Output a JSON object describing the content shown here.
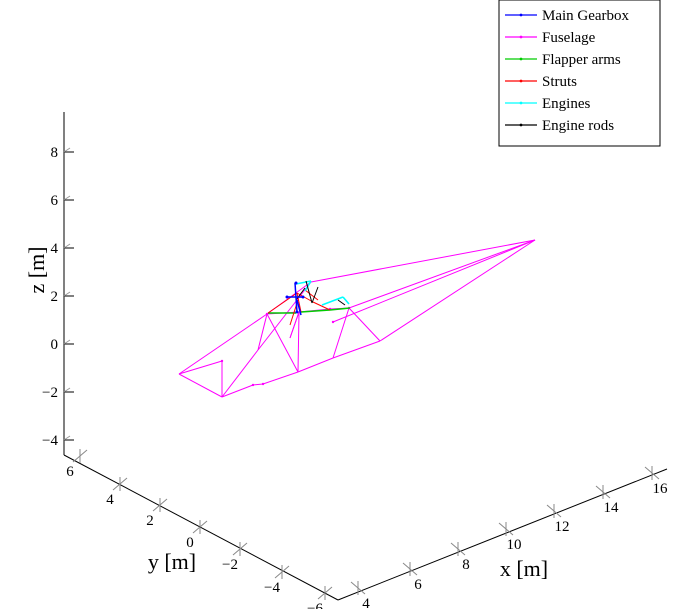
{
  "chart_data": {
    "type": "line3d",
    "axes": {
      "xlabel": "x [m]",
      "ylabel": "y [m]",
      "zlabel": "z [m]",
      "xticks": [
        "4",
        "6",
        "8",
        "10",
        "12",
        "14",
        "16"
      ],
      "yticks": [
        "6",
        "4",
        "2",
        "0",
        "−2",
        "−4",
        "−6"
      ],
      "zticks": [
        "8",
        "6",
        "4",
        "2",
        "0",
        "−2",
        "−4"
      ],
      "xlim": [
        4,
        17
      ],
      "ylim": [
        -6,
        6
      ],
      "zlim": [
        -4.5,
        9.5
      ],
      "grid": false,
      "legend_position": "top-right"
    },
    "series": [
      {
        "name": "Main Gearbox",
        "color": "#0000ff"
      },
      {
        "name": "Fuselage",
        "color": "#ff00ff"
      },
      {
        "name": "Flapper arms",
        "color": "#00cc00"
      },
      {
        "name": "Struts",
        "color": "#ff0000"
      },
      {
        "name": "Engines",
        "color": "#00ffff"
      },
      {
        "name": "Engine rods",
        "color": "#000000"
      }
    ]
  }
}
